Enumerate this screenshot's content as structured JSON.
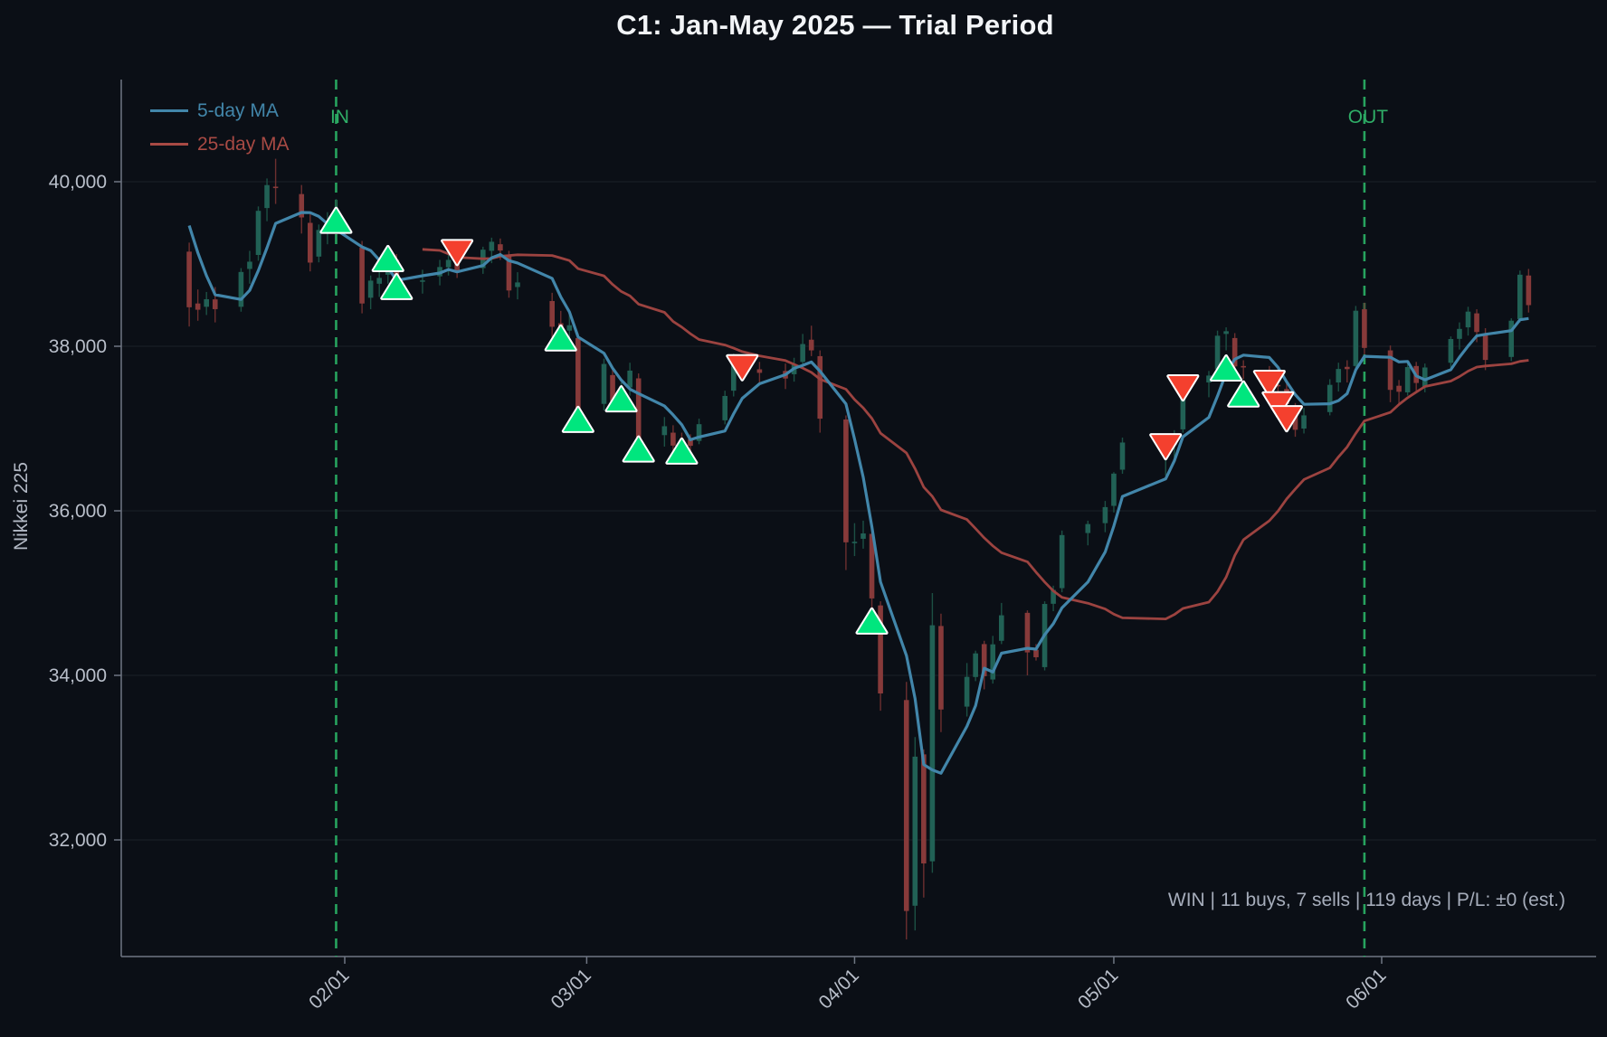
{
  "title": "C1: Jan-May 2025 — Trial Period",
  "legend": {
    "items": [
      {
        "label": "5-day MA",
        "color": "#4286aa"
      },
      {
        "label": "25-day MA",
        "color": "#a84a44"
      }
    ]
  },
  "y_axis": {
    "label": "Nikkei 225",
    "ticks": [
      32000,
      34000,
      36000,
      38000,
      40000
    ],
    "tick_labels": [
      "32,000",
      "34,000",
      "36,000",
      "38,000",
      "40,000"
    ],
    "ylim": [
      30580,
      41240
    ]
  },
  "x_axis": {
    "ticks": [
      {
        "date": "2025-02-01",
        "label": "02/01"
      },
      {
        "date": "2025-03-01",
        "label": "03/01"
      },
      {
        "date": "2025-04-01",
        "label": "04/01"
      },
      {
        "date": "2025-05-01",
        "label": "05/01"
      },
      {
        "date": "2025-06-01",
        "label": "06/01"
      }
    ]
  },
  "events": {
    "in": {
      "date": "2025-01-31",
      "label": "IN"
    },
    "out": {
      "date": "2025-05-30",
      "label": "OUT"
    },
    "line_color": "#27a35e",
    "label_color": "#2fae67"
  },
  "stats": {
    "result": "WIN",
    "buys": 11,
    "sells": 7,
    "days": 119,
    "pl": "±0 (est.)"
  },
  "status_line": "WIN  |  11 buys, 7 sells  |  119 days  |  P/L: ±0 (est.)",
  "colors": {
    "background": "#0b0f16",
    "up_body": "#216155",
    "up_wick": "#1c5044",
    "down_body": "#873a3a",
    "down_wick": "#6c2f2f",
    "ma5": "#4286aa",
    "ma25": "#9c4340",
    "buy_marker": "#00e67e",
    "sell_marker": "#f4402e",
    "marker_edge": "#ffffff",
    "grid": "rgba(173,186,208,0.10)",
    "spine": "#6f7683",
    "tick_text": "#b9bfca",
    "axis_label_text": "#b2b8c4"
  },
  "chart_data": {
    "type": "candlestick",
    "series_label": "Nikkei 225",
    "ylim": [
      30580,
      41240
    ],
    "grid": "horizontal-only",
    "legend_position": "upper-left",
    "overlays": [
      {
        "name": "5-day MA",
        "type": "sma",
        "window": 5
      },
      {
        "name": "25-day MA",
        "type": "sma",
        "window": 25
      }
    ],
    "ma_seed_closes": [
      39307,
      40083,
      39981,
      39605,
      39190
    ],
    "columns": [
      "date",
      "open",
      "high",
      "low",
      "close"
    ],
    "candles": [
      [
        "2025-01-14",
        39150,
        39260,
        38240,
        38474
      ],
      [
        "2025-01-15",
        38520,
        38690,
        38310,
        38444
      ],
      [
        "2025-01-16",
        38480,
        38660,
        38380,
        38572
      ],
      [
        "2025-01-17",
        38570,
        38720,
        38290,
        38451
      ],
      [
        "2025-01-20",
        38480,
        38950,
        38420,
        38903
      ],
      [
        "2025-01-21",
        38940,
        39160,
        38760,
        39028
      ],
      [
        "2025-01-22",
        39110,
        39700,
        39040,
        39646
      ],
      [
        "2025-01-23",
        39680,
        40040,
        39520,
        39959
      ],
      [
        "2025-01-24",
        39940,
        40279,
        39730,
        39932
      ],
      [
        "2025-01-27",
        39850,
        39960,
        39370,
        39566
      ],
      [
        "2025-01-28",
        39500,
        39630,
        38910,
        39017
      ],
      [
        "2025-01-29",
        39090,
        39480,
        39020,
        39414
      ],
      [
        "2025-01-30",
        39430,
        39630,
        39240,
        39513
      ],
      [
        "2025-01-31",
        39560,
        39790,
        39370,
        39572
      ],
      [
        "2025-02-03",
        39200,
        39280,
        38400,
        38520
      ],
      [
        "2025-02-04",
        38590,
        38860,
        38450,
        38798
      ],
      [
        "2025-02-05",
        38760,
        38930,
        38600,
        38831
      ],
      [
        "2025-02-06",
        38870,
        39140,
        38760,
        39066
      ],
      [
        "2025-02-07",
        39050,
        39120,
        38600,
        38787
      ],
      [
        "2025-02-10",
        38790,
        38930,
        38640,
        38801
      ],
      [
        "2025-02-12",
        38850,
        39050,
        38740,
        38963
      ],
      [
        "2025-02-13",
        38960,
        39130,
        38860,
        39050
      ],
      [
        "2025-02-14",
        39040,
        39110,
        38830,
        38920
      ],
      [
        "2025-02-17",
        38950,
        39210,
        38880,
        39174
      ],
      [
        "2025-02-18",
        39160,
        39320,
        39010,
        39270
      ],
      [
        "2025-02-19",
        39240,
        39310,
        39050,
        39164
      ],
      [
        "2025-02-20",
        39100,
        39160,
        38590,
        38678
      ],
      [
        "2025-02-21",
        38720,
        38900,
        38570,
        38776
      ],
      [
        "2025-02-25",
        38550,
        38650,
        38110,
        38237
      ],
      [
        "2025-02-26",
        38280,
        38430,
        38020,
        38142
      ],
      [
        "2025-02-27",
        38190,
        38440,
        38100,
        38256
      ],
      [
        "2025-02-28",
        38100,
        38160,
        37080,
        37156
      ],
      [
        "2025-03-03",
        37300,
        37850,
        37220,
        37785
      ],
      [
        "2025-03-04",
        37650,
        37740,
        37230,
        37331
      ],
      [
        "2025-03-05",
        37390,
        37560,
        37280,
        37418
      ],
      [
        "2025-03-06",
        37500,
        37800,
        37400,
        37704
      ],
      [
        "2025-03-07",
        37610,
        37670,
        36820,
        36887
      ],
      [
        "2025-03-10",
        36920,
        37140,
        36780,
        37028
      ],
      [
        "2025-03-11",
        36950,
        37040,
        36600,
        36793
      ],
      [
        "2025-03-12",
        36850,
        36950,
        36680,
        36819
      ],
      [
        "2025-03-13",
        36870,
        36930,
        36690,
        36790
      ],
      [
        "2025-03-14",
        36850,
        37120,
        36810,
        37053
      ],
      [
        "2025-03-17",
        37100,
        37460,
        37050,
        37396
      ],
      [
        "2025-03-18",
        37460,
        37910,
        37390,
        37845
      ],
      [
        "2025-03-19",
        37810,
        37890,
        37620,
        37751
      ],
      [
        "2025-03-21",
        37720,
        37810,
        37530,
        37677
      ],
      [
        "2025-03-24",
        37700,
        37790,
        37480,
        37608
      ],
      [
        "2025-03-25",
        37660,
        37860,
        37570,
        37780
      ],
      [
        "2025-03-26",
        37810,
        38150,
        37740,
        38027
      ],
      [
        "2025-03-27",
        38080,
        38250,
        37880,
        37950
      ],
      [
        "2025-03-28",
        37880,
        37950,
        36950,
        37120
      ],
      [
        "2025-03-31",
        37110,
        37160,
        35280,
        35617
      ],
      [
        "2025-04-01",
        35610,
        35850,
        35450,
        35624
      ],
      [
        "2025-04-02",
        35660,
        35880,
        35540,
        35725
      ],
      [
        "2025-04-03",
        35720,
        35780,
        34820,
        34935
      ],
      [
        "2025-04-04",
        34850,
        34900,
        33570,
        33780
      ],
      [
        "2025-04-07",
        33700,
        33920,
        30790,
        31136
      ],
      [
        "2025-04-08",
        31200,
        33250,
        30900,
        33012
      ],
      [
        "2025-04-09",
        33040,
        33100,
        31300,
        31714
      ],
      [
        "2025-04-10",
        31740,
        35000,
        31600,
        34609
      ],
      [
        "2025-04-11",
        34600,
        34750,
        33310,
        33585
      ],
      [
        "2025-04-14",
        33620,
        34150,
        33500,
        33982
      ],
      [
        "2025-04-15",
        33980,
        34300,
        33930,
        34267
      ],
      [
        "2025-04-16",
        34380,
        34420,
        33830,
        33990
      ],
      [
        "2025-04-17",
        33950,
        34480,
        33900,
        34377
      ],
      [
        "2025-04-18",
        34420,
        34880,
        34380,
        34730
      ],
      [
        "2025-04-21",
        34760,
        34790,
        34000,
        34279
      ],
      [
        "2025-04-22",
        34310,
        34380,
        34180,
        34220
      ],
      [
        "2025-04-23",
        34100,
        34900,
        34060,
        34868
      ],
      [
        "2025-04-24",
        34870,
        35090,
        34780,
        35039
      ],
      [
        "2025-04-25",
        35060,
        35760,
        35010,
        35705
      ],
      [
        "2025-04-28",
        35730,
        35880,
        35580,
        35839
      ],
      [
        "2025-04-30",
        35850,
        36120,
        35740,
        36045
      ],
      [
        "2025-05-01",
        36060,
        36470,
        35980,
        36452
      ],
      [
        "2025-05-02",
        36500,
        36890,
        36450,
        36830
      ],
      [
        "2025-05-07",
        36660,
        36850,
        36430,
        36779
      ],
      [
        "2025-05-08",
        36800,
        36980,
        36650,
        36928
      ],
      [
        "2025-05-09",
        36990,
        37560,
        36950,
        37503
      ],
      [
        "2025-05-12",
        37560,
        37700,
        37380,
        37644
      ],
      [
        "2025-05-13",
        37720,
        38190,
        37650,
        38128
      ],
      [
        "2025-05-14",
        38150,
        38230,
        37950,
        38183
      ],
      [
        "2025-05-15",
        38100,
        38160,
        37700,
        37755
      ],
      [
        "2025-05-16",
        37760,
        37830,
        37600,
        37753
      ],
      [
        "2025-05-19",
        37700,
        37760,
        37300,
        37498
      ],
      [
        "2025-05-20",
        37530,
        37760,
        37440,
        37529
      ],
      [
        "2025-05-21",
        37480,
        37560,
        37200,
        37298
      ],
      [
        "2025-05-22",
        37250,
        37310,
        36900,
        36985
      ],
      [
        "2025-05-23",
        37000,
        37250,
        36940,
        37160
      ],
      [
        "2025-05-26",
        37200,
        37600,
        37160,
        37531
      ],
      [
        "2025-05-27",
        37560,
        37800,
        37450,
        37724
      ],
      [
        "2025-05-28",
        37750,
        37830,
        37560,
        37722
      ],
      [
        "2025-05-29",
        37760,
        38490,
        37720,
        38432
      ],
      [
        "2025-05-30",
        38450,
        38530,
        37900,
        37980
      ],
      [
        "2025-06-02",
        37950,
        38010,
        37320,
        37470
      ],
      [
        "2025-06-03",
        37520,
        37590,
        37300,
        37447
      ],
      [
        "2025-06-04",
        37440,
        37820,
        37400,
        37747
      ],
      [
        "2025-06-05",
        37760,
        37810,
        37450,
        37554
      ],
      [
        "2025-06-06",
        37500,
        37790,
        37440,
        37742
      ],
      [
        "2025-06-09",
        37800,
        38120,
        37740,
        38088
      ],
      [
        "2025-06-10",
        38090,
        38290,
        37960,
        38211
      ],
      [
        "2025-06-11",
        38230,
        38480,
        38130,
        38421
      ],
      [
        "2025-06-12",
        38400,
        38450,
        38050,
        38173
      ],
      [
        "2025-06-13",
        38150,
        38220,
        37710,
        37834
      ],
      [
        "2025-06-16",
        37870,
        38340,
        37820,
        38311
      ],
      [
        "2025-06-17",
        38330,
        38920,
        38290,
        38870
      ],
      [
        "2025-06-18",
        38860,
        38940,
        38410,
        38500
      ]
    ],
    "markers": [
      {
        "d": "2025-01-31",
        "type": "buy",
        "price": 39520
      },
      {
        "d": "2025-02-06",
        "type": "buy",
        "price": 39055
      },
      {
        "d": "2025-02-07",
        "type": "buy",
        "price": 38715
      },
      {
        "d": "2025-02-14",
        "type": "sell",
        "price": 39150
      },
      {
        "d": "2025-02-26",
        "type": "buy",
        "price": 38090
      },
      {
        "d": "2025-02-28",
        "type": "buy",
        "price": 37100
      },
      {
        "d": "2025-03-05",
        "type": "buy",
        "price": 37350
      },
      {
        "d": "2025-03-07",
        "type": "buy",
        "price": 36740
      },
      {
        "d": "2025-03-12",
        "type": "buy",
        "price": 36715
      },
      {
        "d": "2025-03-19",
        "type": "sell",
        "price": 37750
      },
      {
        "d": "2025-04-03",
        "type": "buy",
        "price": 34650
      },
      {
        "d": "2025-05-07",
        "type": "sell",
        "price": 36790
      },
      {
        "d": "2025-05-09",
        "type": "sell",
        "price": 37505
      },
      {
        "d": "2025-05-14",
        "type": "buy",
        "price": 37725
      },
      {
        "d": "2025-05-16",
        "type": "buy",
        "price": 37410
      },
      {
        "d": "2025-05-19",
        "type": "sell",
        "price": 37560
      },
      {
        "d": "2025-05-20",
        "type": "sell",
        "price": 37300
      },
      {
        "d": "2025-05-21",
        "type": "sell",
        "price": 37130
      }
    ]
  }
}
